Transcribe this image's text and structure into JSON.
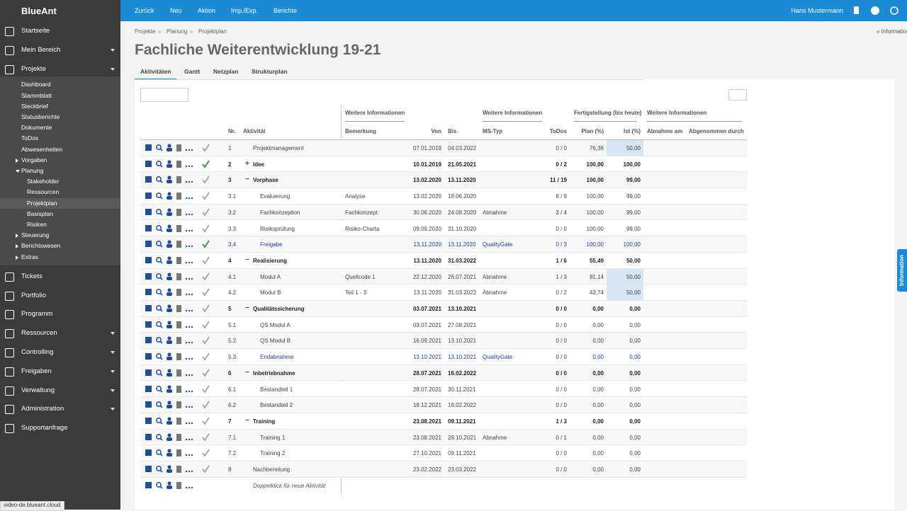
{
  "sidebar": {
    "logo": "BlueAnt",
    "items": [
      {
        "label": "Startseite"
      },
      {
        "label": "Mein Bereich",
        "menu": true
      },
      {
        "label": "Projekte",
        "menu": true,
        "children": [
          {
            "label": "Dashboard"
          },
          {
            "label": "Stammblatt"
          },
          {
            "label": "Steckbrief"
          },
          {
            "label": "Statusberichte"
          },
          {
            "label": "Dokumente"
          },
          {
            "label": "ToDos"
          },
          {
            "label": "Abwesenheiten"
          },
          {
            "label": "Vorgaben",
            "toggle": "closed"
          },
          {
            "label": "Planung",
            "toggle": "open",
            "children": [
              {
                "label": "Stakeholder"
              },
              {
                "label": "Ressourcen"
              },
              {
                "label": "Projektplan",
                "active": true
              },
              {
                "label": "Basisplan"
              },
              {
                "label": "Risiken"
              }
            ]
          },
          {
            "label": "Steuerung",
            "toggle": "closed"
          },
          {
            "label": "Berichtswesen",
            "toggle": "closed"
          },
          {
            "label": "Extras",
            "toggle": "closed"
          }
        ]
      },
      {
        "label": "Tickets"
      },
      {
        "label": "Portfolio"
      },
      {
        "label": "Programm"
      },
      {
        "label": "Ressourcen",
        "menu": true
      },
      {
        "label": "Controlling",
        "menu": true
      },
      {
        "label": "Freigaben",
        "menu": true
      },
      {
        "label": "Verwaltung",
        "menu": true
      },
      {
        "label": "Administration",
        "menu": true
      },
      {
        "label": "Supportanfrage"
      }
    ]
  },
  "topbar": {
    "menu": [
      "Zurück",
      "Neu",
      "Aktion",
      "Imp./Exp.",
      "Berichte"
    ],
    "user": "Hans Mustermann"
  },
  "breadcrumb": [
    "Projekte",
    "Planung",
    "Projektplan"
  ],
  "info_link": "« Information",
  "title": "Fachliche Weiterentwicklung 19-21",
  "tabs": [
    "Aktivitäten",
    "Gantt",
    "Netzplan",
    "Strukturplan"
  ],
  "table": {
    "groups": [
      "Weitere Informationen",
      "Weitere Informationen",
      "Fertigstellung (bis heute)",
      "Weitere Informationen"
    ],
    "columns": [
      "Nr.",
      "Aktivität",
      "Bemerkung",
      "Von",
      "Bis",
      "MS-Typ",
      "ToDos",
      "Plan (%)",
      "Ist (%)",
      "Abnahme am",
      "Abgenommen durch"
    ],
    "rows": [
      {
        "nr": "1",
        "activity": "Projektmanagement",
        "from": "07.01.2019",
        "to": "04.03.2022",
        "todos": "0 / 0",
        "plan": "76,36",
        "ist": "50,00",
        "ist_highlight": true
      },
      {
        "nr": "2",
        "activity": "Idee",
        "toggle": "+",
        "from": "10.01.2019",
        "to": "21.05.2021",
        "todos": "0 / 2",
        "plan": "100,00",
        "ist": "100,00",
        "checked": true
      },
      {
        "nr": "3",
        "activity": "Vorphase",
        "toggle": "−",
        "from": "13.02.2020",
        "to": "13.11.2020",
        "todos": "11 / 19",
        "plan": "100,00",
        "ist": "99,00"
      },
      {
        "nr": "3.1",
        "activity": "Evaluierung",
        "remark": "Analyse",
        "from": "13.02.2020",
        "to": "18.06.2020",
        "todos": "8 / 9",
        "plan": "100,00",
        "ist": "99,00"
      },
      {
        "nr": "3.2",
        "activity": "Fachkonzeption",
        "remark": "Fachkonzept",
        "from": "30.06.2020",
        "to": "24.08.2020",
        "ms": "Abnahme",
        "todos": "3 / 4",
        "plan": "100,00",
        "ist": "99,00"
      },
      {
        "nr": "3.3",
        "activity": "Risikoprüfung",
        "remark": "Risiko-Charta",
        "from": "09.09.2020",
        "to": "31.10.2020",
        "todos": "0 / 0",
        "plan": "100,00",
        "ist": "99,00"
      },
      {
        "nr": "3.4",
        "activity": "Freigabe",
        "from": "13.11.2020",
        "to": "13.11.2020",
        "ms": "QualityGate",
        "todos": "0 / 3",
        "plan": "100,00",
        "ist": "100,00",
        "checked": true
      },
      {
        "nr": "4",
        "activity": "Realisierung",
        "toggle": "−",
        "from": "13.11.2020",
        "to": "31.03.2022",
        "todos": "1 / 6",
        "plan": "55,49",
        "ist": "50,00"
      },
      {
        "nr": "4.1",
        "activity": "Modul A",
        "remark": "Quellcode 1",
        "from": "22.12.2020",
        "to": "26.07.2021",
        "ms": "Abnahme",
        "todos": "1 / 3",
        "plan": "81,14",
        "ist": "50,00",
        "ist_highlight": true
      },
      {
        "nr": "4.2",
        "activity": "Modul B",
        "remark": "Teil 1 - 3",
        "from": "13.11.2020",
        "to": "31.03.2022",
        "ms": "Abnahme",
        "todos": "0 / 2",
        "plan": "43,74",
        "ist": "50,00",
        "ist_highlight": true
      },
      {
        "nr": "5",
        "activity": "Qualitätssicherung",
        "toggle": "−",
        "from": "03.07.2021",
        "to": "13.10.2021",
        "todos": "0 / 0",
        "plan": "0,00",
        "ist": "0,00"
      },
      {
        "nr": "5.1",
        "activity": "QS Modul A",
        "from": "03.07.2021",
        "to": "27.08.2021",
        "todos": "0 / 0",
        "plan": "0,00",
        "ist": "0,00"
      },
      {
        "nr": "5.2",
        "activity": "QS Modul B",
        "from": "16.09.2021",
        "to": "13.10.2021",
        "todos": "0 / 0",
        "plan": "0,00",
        "ist": "0,00"
      },
      {
        "nr": "5.3",
        "activity": "Endabnahme",
        "from": "13.10.2021",
        "to": "13.10.2021",
        "ms": "QualityGate",
        "todos": "0 / 0",
        "plan": "0,00",
        "ist": "0,00"
      },
      {
        "nr": "6",
        "activity": "Inbetriebnahme",
        "toggle": "−",
        "from": "28.07.2021",
        "to": "16.02.2022",
        "todos": "0 / 0",
        "plan": "0,00",
        "ist": "0,00"
      },
      {
        "nr": "6.1",
        "activity": "Bestandteil 1",
        "from": "28.07.2021",
        "to": "30.11.2021",
        "todos": "0 / 0",
        "plan": "0,00",
        "ist": "0,00"
      },
      {
        "nr": "6.2",
        "activity": "Bestandteil 2",
        "from": "18.12.2021",
        "to": "16.02.2022",
        "todos": "0 / 0",
        "plan": "0,00",
        "ist": "0,00"
      },
      {
        "nr": "7",
        "activity": "Training",
        "toggle": "−",
        "from": "23.08.2021",
        "to": "09.11.2021",
        "todos": "1 / 3",
        "plan": "0,00",
        "ist": "0,00"
      },
      {
        "nr": "7.1",
        "activity": "Training 1",
        "from": "23.08.2021",
        "to": "29.10.2021",
        "ms": "Abnahme",
        "todos": "0 / 1",
        "plan": "0,00",
        "ist": "0,00"
      },
      {
        "nr": "7.2",
        "activity": "Training 2",
        "from": "27.10.2021",
        "to": "09.11.2021",
        "todos": "0 / 0",
        "plan": "0,00",
        "ist": "0,00"
      },
      {
        "nr": "8",
        "activity": "Nachbereitung",
        "from": "23.02.2022",
        "to": "23.03.2022",
        "todos": "0 / 0",
        "plan": "0,00",
        "ist": "0,00"
      }
    ],
    "new_row": "Doppelklick für neue Aktivität"
  },
  "side_tab": "Information",
  "status_url": "video-de.blueant.cloud"
}
